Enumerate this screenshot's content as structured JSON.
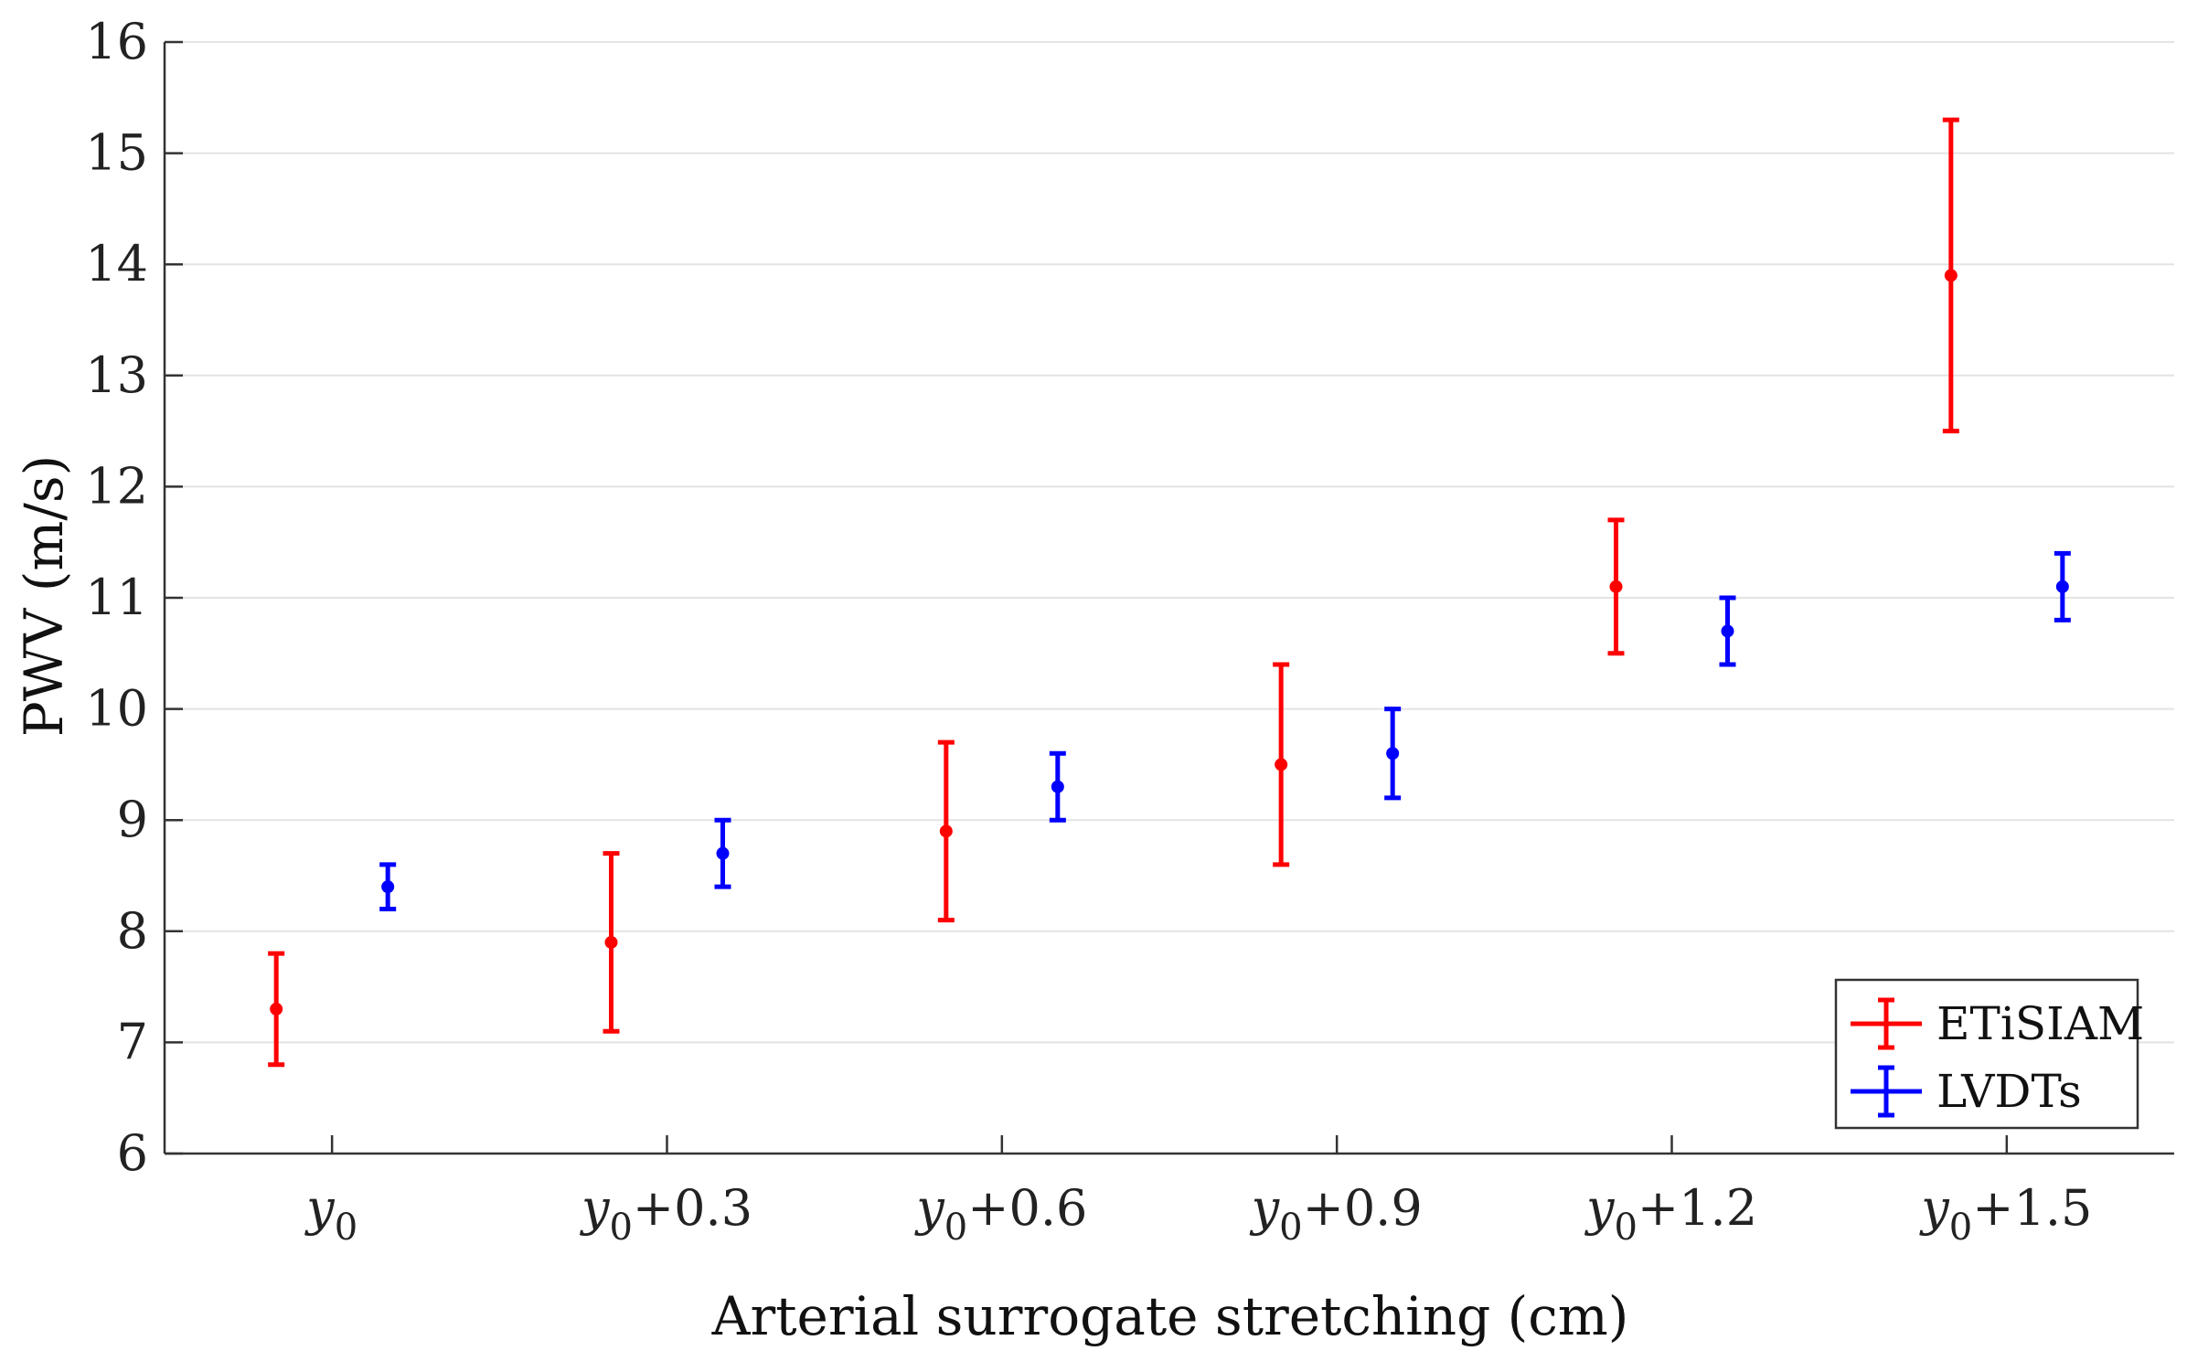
{
  "chart_data": {
    "type": "scatter",
    "subtype": "errorbar",
    "title": "",
    "xlabel": "Arterial surrogate stretching (cm)",
    "ylabel": "PWV (m/s)",
    "ylim": [
      6,
      16
    ],
    "yticks": [
      6,
      7,
      8,
      9,
      10,
      11,
      12,
      13,
      14,
      15,
      16
    ],
    "categories": [
      {
        "base": "y",
        "sub": "0",
        "suffix": ""
      },
      {
        "base": "y",
        "sub": "0",
        "suffix": "+0.3"
      },
      {
        "base": "y",
        "sub": "0",
        "suffix": "+0.6"
      },
      {
        "base": "y",
        "sub": "0",
        "suffix": "+0.9"
      },
      {
        "base": "y",
        "sub": "0",
        "suffix": "+1.2"
      },
      {
        "base": "y",
        "sub": "0",
        "suffix": "+1.5"
      }
    ],
    "grid": "horizontal",
    "legend_position": "bottom-right",
    "series": [
      {
        "name": "ETiSIAM",
        "color": "#ff0000",
        "values": [
          7.3,
          7.9,
          8.9,
          9.5,
          11.1,
          13.9
        ],
        "lower": [
          6.8,
          7.1,
          8.1,
          8.6,
          10.5,
          12.5
        ],
        "upper": [
          7.8,
          8.7,
          9.7,
          10.4,
          11.7,
          15.3
        ]
      },
      {
        "name": "LVDTs",
        "color": "#0000ff",
        "values": [
          8.4,
          8.7,
          9.3,
          9.6,
          10.7,
          11.1
        ],
        "lower": [
          8.2,
          8.4,
          9.0,
          9.2,
          10.4,
          10.8
        ],
        "upper": [
          8.6,
          9.0,
          9.6,
          10.0,
          11.0,
          11.4
        ]
      }
    ]
  }
}
